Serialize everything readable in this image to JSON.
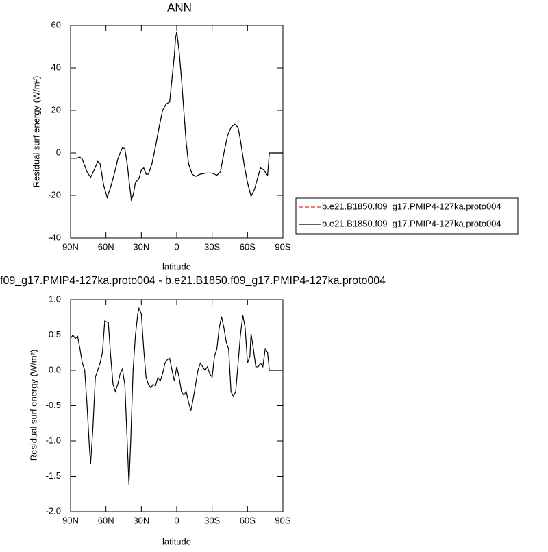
{
  "chart_data": [
    {
      "type": "line",
      "title": "ANN",
      "xlabel": "latitude",
      "ylabel": "Residual surf energy (W/m²)",
      "xlim": [
        90,
        -90
      ],
      "ylim": [
        -40,
        60
      ],
      "xticks": [
        {
          "value": 90,
          "label": "90N"
        },
        {
          "value": 60,
          "label": "60N"
        },
        {
          "value": 30,
          "label": "30N"
        },
        0,
        {
          "value": -30,
          "label": "30S"
        },
        {
          "value": -60,
          "label": "60S"
        },
        {
          "value": -90,
          "label": "90S"
        }
      ],
      "yticks": [
        -40,
        -20,
        0,
        20,
        40,
        60
      ],
      "x": [
        90,
        85,
        82,
        80,
        76,
        73,
        70,
        67,
        65,
        62,
        59,
        56,
        53,
        50,
        48,
        46,
        44,
        42,
        40,
        38.5,
        37,
        35,
        32,
        30,
        28,
        26,
        24,
        21,
        18,
        15,
        12,
        9,
        6,
        4,
        2,
        1,
        0,
        -2,
        -4,
        -6,
        -8,
        -10,
        -13,
        -16,
        -20,
        -25,
        -30,
        -34,
        -37,
        -40,
        -43,
        -46,
        -49,
        -52,
        -54,
        -57,
        -60,
        -63,
        -66,
        -69,
        -71,
        -74,
        -76,
        -77,
        -78.5,
        -80,
        -90
      ],
      "series": [
        {
          "name": "b.e21.B1850.f09_g17.PMIP4-127ka.proto004",
          "color": "#e03030",
          "line_style": "dashed",
          "values": [
            -2.5,
            -2.5,
            -2,
            -3,
            -9,
            -11.5,
            -8,
            -4,
            -5,
            -15,
            -21,
            -16,
            -10,
            -3,
            0,
            2.5,
            2,
            -5,
            -15,
            -22,
            -20,
            -14,
            -12,
            -8,
            -7,
            -10,
            -10,
            -5,
            3,
            12,
            20,
            23,
            24,
            35,
            46,
            54,
            57,
            48,
            35,
            20,
            5,
            -5,
            -10,
            -11,
            -10,
            -9.5,
            -9.5,
            -10.5,
            -9,
            0,
            8,
            12,
            13.5,
            12,
            6,
            -5,
            -14,
            -20.5,
            -17,
            -11,
            -7,
            -8,
            -10,
            -10.5,
            0,
            0,
            0
          ]
        },
        {
          "name": "b.e21.B1850.f09_g17.PMIP4-127ka.proto004",
          "color": "#000000",
          "line_style": "solid",
          "values": [
            -2.5,
            -2.5,
            -2,
            -3,
            -9,
            -11.5,
            -8,
            -4,
            -5,
            -15,
            -21,
            -16,
            -10,
            -3,
            0,
            2.5,
            2,
            -5,
            -15,
            -22,
            -20,
            -14,
            -12,
            -8,
            -7,
            -10,
            -10,
            -5,
            3,
            12,
            20,
            23,
            24,
            35,
            46,
            54,
            57,
            48,
            35,
            20,
            5,
            -5,
            -10,
            -11,
            -10,
            -9.5,
            -9.5,
            -10.5,
            -9,
            0,
            8,
            12,
            13.5,
            12,
            6,
            -5,
            -14,
            -20.5,
            -17,
            -11,
            -7,
            -8,
            -10,
            -10.5,
            0,
            0,
            0
          ]
        }
      ]
    },
    {
      "type": "line",
      "title": "f09_g17.PMIP4-127ka.proto004 - b.e21.B1850.f09_g17.PMIP4-127ka.proto004",
      "xlabel": "latitude",
      "ylabel": "Residual surf energy (W/m²)",
      "xlim": [
        90,
        -90
      ],
      "ylim": [
        -2,
        1
      ],
      "xticks": [
        {
          "value": 90,
          "label": "90N"
        },
        {
          "value": 60,
          "label": "60N"
        },
        {
          "value": 30,
          "label": "30N"
        },
        0,
        {
          "value": -30,
          "label": "30S"
        },
        {
          "value": -60,
          "label": "60S"
        },
        {
          "value": -90,
          "label": "90S"
        }
      ],
      "yticks": [
        {
          "value": -2,
          "label": "-2.0"
        },
        -1.5,
        {
          "value": -1,
          "label": "-1.0"
        },
        -0.5,
        {
          "value": 0,
          "label": "0.0"
        },
        0.5,
        {
          "value": 1,
          "label": "1.0"
        }
      ],
      "x": [
        90,
        88,
        86,
        84,
        82,
        80,
        78,
        76,
        74,
        73,
        71,
        69,
        67,
        65,
        63,
        61,
        59,
        58,
        56,
        54,
        52,
        50,
        48,
        46,
        45,
        44,
        42,
        40.5,
        39,
        37,
        35,
        33,
        32,
        30,
        28,
        26,
        24,
        22,
        20,
        18,
        16,
        14,
        12,
        10,
        8,
        6,
        4,
        2,
        0,
        -2,
        -4,
        -6,
        -8,
        -10,
        -12,
        -14,
        -16,
        -18,
        -20,
        -22,
        -24,
        -26,
        -28,
        -30,
        -32,
        -34,
        -36,
        -38,
        -40,
        -42,
        -44,
        -46,
        -48,
        -50,
        -52,
        -54,
        -56,
        -58,
        -60,
        -62,
        -63,
        -65,
        -67,
        -69,
        -71,
        -73,
        -75,
        -77,
        -78.5,
        -80,
        -90
      ],
      "series": [
        {
          "color": "#000000",
          "line_style": "solid",
          "values": [
            0.45,
            0.5,
            0.45,
            0.48,
            0.3,
            0.1,
            0.0,
            -0.5,
            -1.1,
            -1.32,
            -0.8,
            -0.1,
            0.0,
            0.1,
            0.25,
            0.7,
            0.68,
            0.68,
            0.2,
            -0.2,
            -0.3,
            -0.2,
            -0.05,
            0.02,
            -0.1,
            -0.2,
            -1.0,
            -1.62,
            -1.0,
            0.0,
            0.5,
            0.8,
            0.88,
            0.8,
            0.3,
            -0.1,
            -0.2,
            -0.25,
            -0.2,
            -0.22,
            -0.1,
            -0.15,
            -0.05,
            0.1,
            0.15,
            0.17,
            0.0,
            -0.15,
            0.05,
            -0.1,
            -0.3,
            -0.35,
            -0.3,
            -0.45,
            -0.57,
            -0.4,
            -0.2,
            0.0,
            0.1,
            0.05,
            0.0,
            0.05,
            -0.05,
            -0.1,
            0.2,
            0.3,
            0.6,
            0.76,
            0.6,
            0.4,
            0.3,
            -0.3,
            -0.37,
            -0.3,
            0.1,
            0.5,
            0.78,
            0.6,
            0.1,
            0.2,
            0.52,
            0.3,
            0.05,
            0.05,
            0.1,
            0.05,
            0.3,
            0.25,
            0.0,
            0.0,
            0.0
          ]
        }
      ]
    }
  ]
}
